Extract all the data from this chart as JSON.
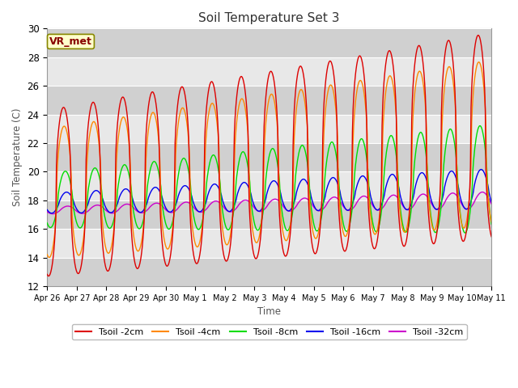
{
  "title": "Soil Temperature Set 3",
  "xlabel": "Time",
  "ylabel": "Soil Temperature (C)",
  "ylim": [
    12,
    30
  ],
  "yticks": [
    12,
    14,
    16,
    18,
    20,
    22,
    24,
    26,
    28,
    30
  ],
  "annotation": "VR_met",
  "x_tick_labels": [
    "Apr 26",
    "Apr 27",
    "Apr 28",
    "Apr 29",
    "Apr 30",
    "May 1",
    "May 2",
    "May 3",
    "May 4",
    "May 5",
    "May 6",
    "May 7",
    "May 8",
    "May 9",
    "May 10",
    "May 11"
  ],
  "colors": {
    "t2": "#dd0000",
    "t4": "#ff8800",
    "t8": "#00dd00",
    "t16": "#0000ee",
    "t32": "#cc00cc"
  },
  "legend_labels": [
    "Tsoil -2cm",
    "Tsoil -4cm",
    "Tsoil -8cm",
    "Tsoil -16cm",
    "Tsoil -32cm"
  ],
  "fig_bg": "#ffffff",
  "ax_bg": "#e8e8e8",
  "num_points": 720
}
